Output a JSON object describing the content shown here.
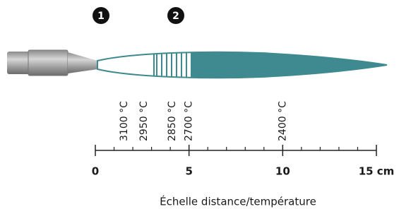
{
  "markers": [
    "1",
    "2"
  ],
  "scale": {
    "xlim": [
      0,
      15
    ],
    "ticks": [
      0,
      5,
      10,
      {
        "value": 15,
        "label": "15 cm"
      }
    ],
    "minor_ticks": [
      1,
      2,
      3,
      4,
      6,
      7,
      8,
      9,
      11,
      12,
      13,
      14
    ]
  },
  "temperatures": [
    {
      "distance": 1.55,
      "label": "3100 °C"
    },
    {
      "distance": 2.6,
      "label": "2950 °C"
    },
    {
      "distance": 4.1,
      "label": "2850 °C"
    },
    {
      "distance": 5.0,
      "label": "2700 °C"
    },
    {
      "distance": 10.0,
      "label": "2400 °C"
    }
  ],
  "caption": "Échelle distance/température"
}
